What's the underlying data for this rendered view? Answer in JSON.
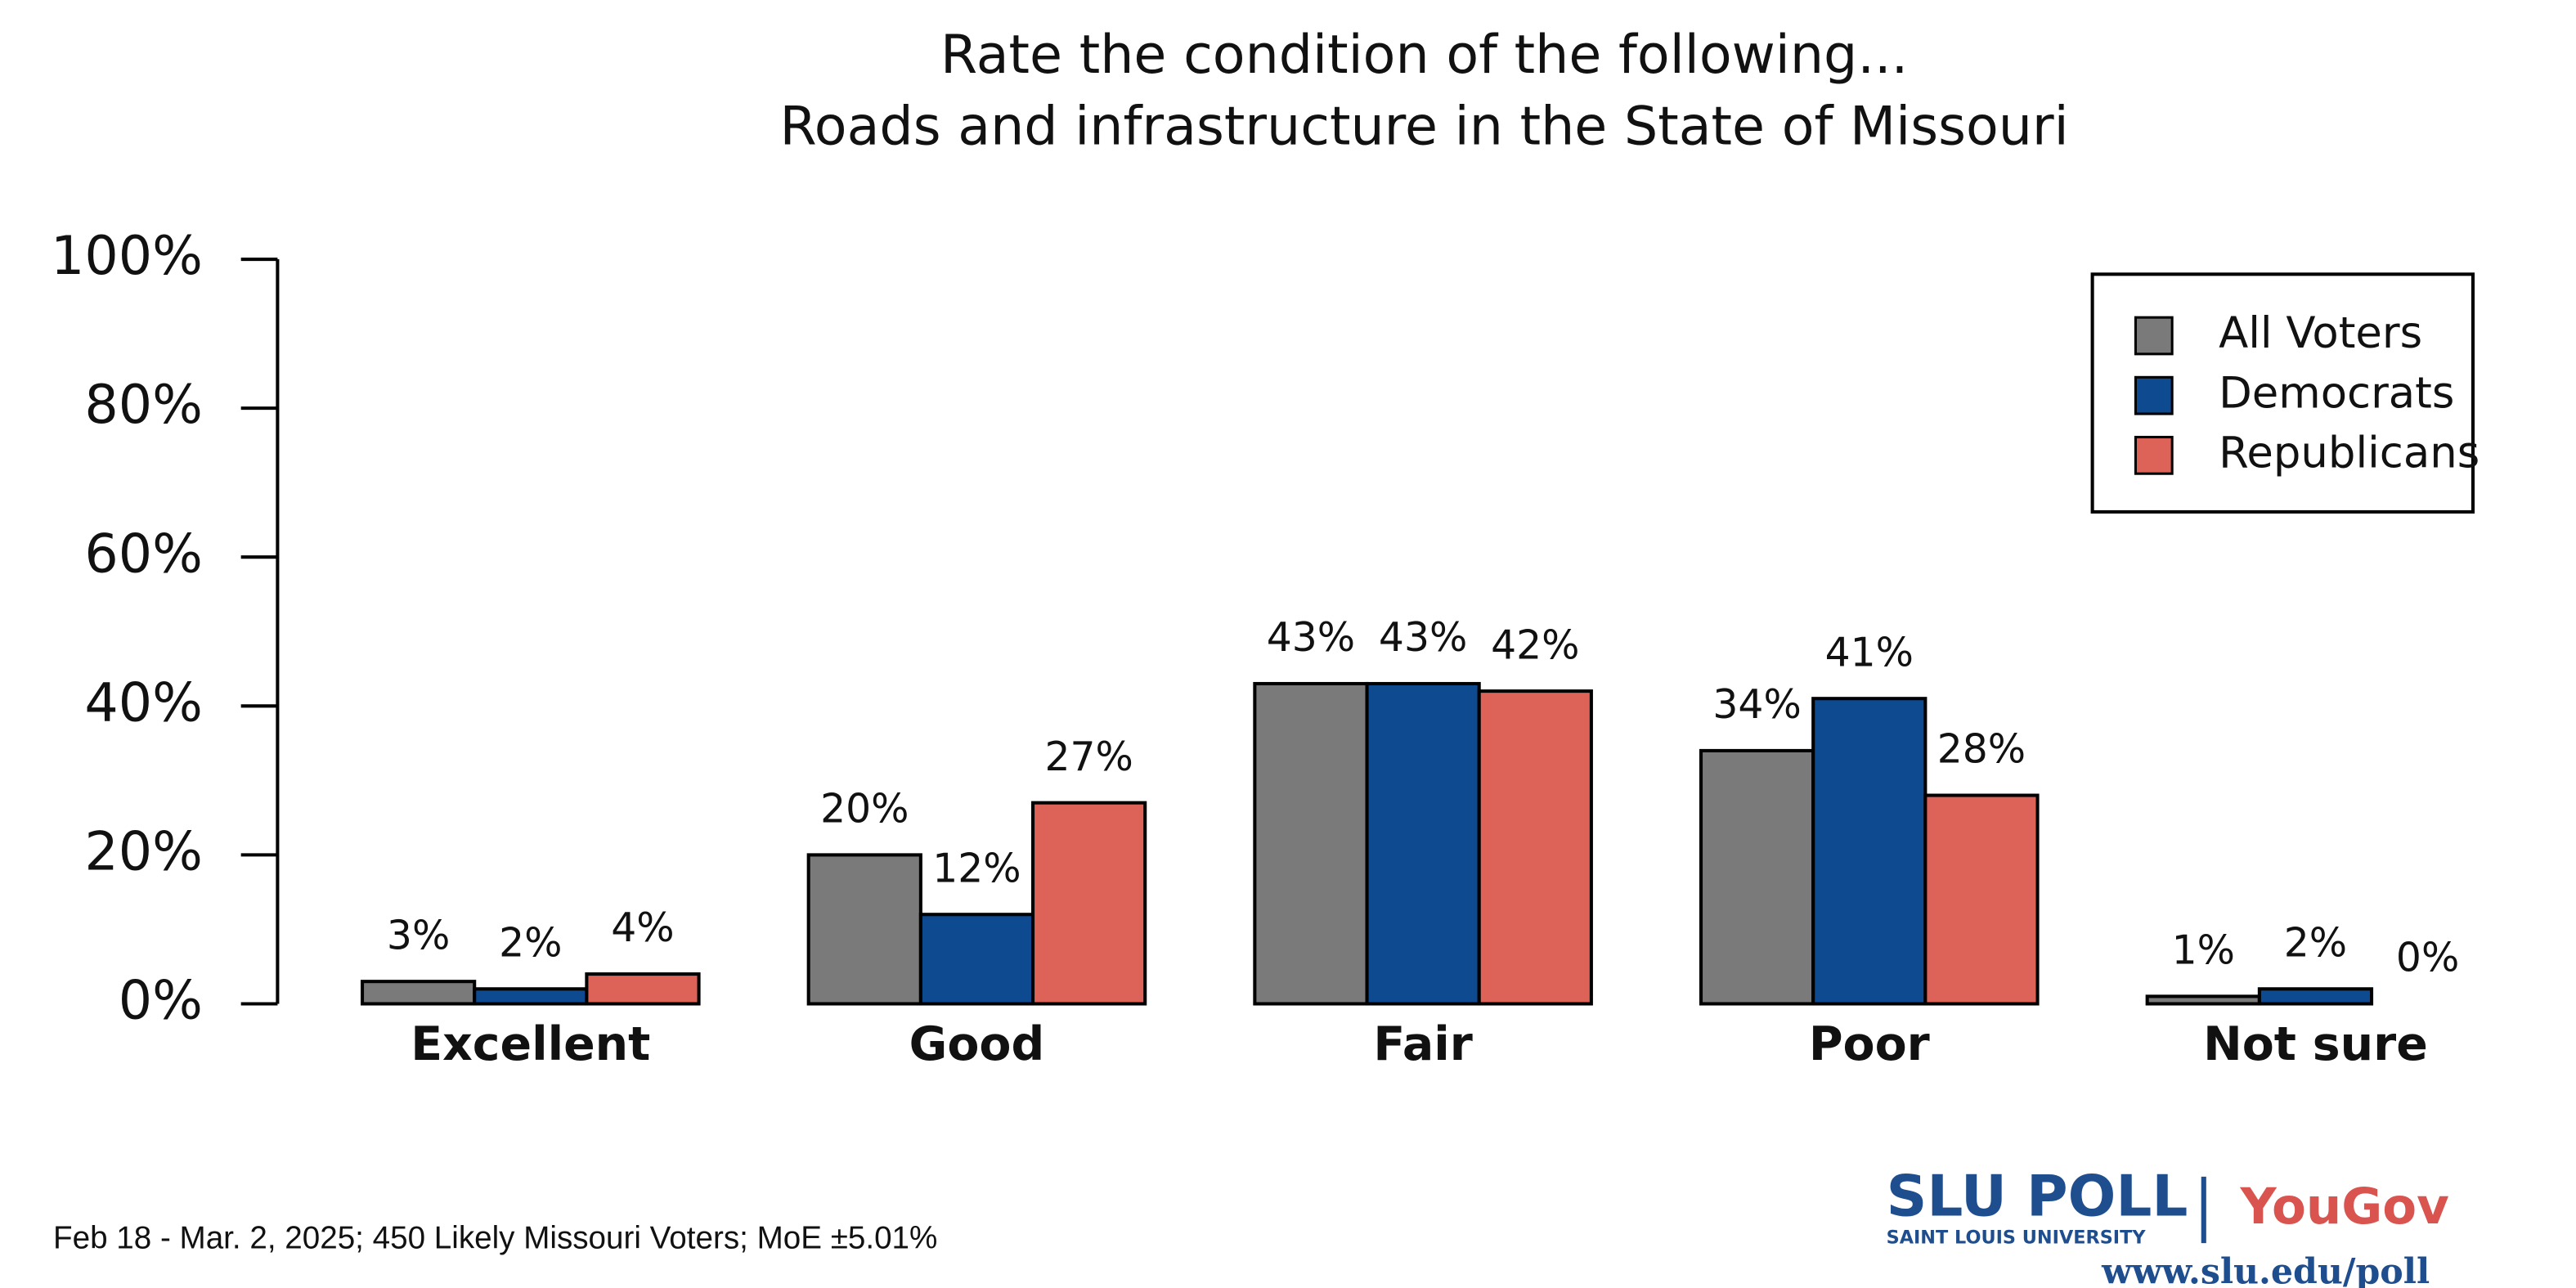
{
  "chart_data": {
    "type": "bar",
    "title": "Rate the condition of the following...",
    "subtitle": "Roads and infrastructure in the State of Missouri",
    "categories": [
      "Excellent",
      "Good",
      "Fair",
      "Poor",
      "Not sure"
    ],
    "series": [
      {
        "name": "All Voters",
        "color": "#7a7a7a",
        "values": [
          3,
          20,
          43,
          34,
          1
        ],
        "value_labels": [
          "3%",
          "20%",
          "43%",
          "34%",
          "1%"
        ]
      },
      {
        "name": "Democrats",
        "color": "#0d4a8f",
        "values": [
          2,
          12,
          43,
          41,
          2
        ],
        "value_labels": [
          "2%",
          "12%",
          "43%",
          "41%",
          "2%"
        ]
      },
      {
        "name": "Republicans",
        "color": "#dd6358",
        "values": [
          4,
          27,
          42,
          28,
          0
        ],
        "value_labels": [
          "4%",
          "27%",
          "42%",
          "28%",
          "0%"
        ]
      }
    ],
    "ylim": [
      0,
      100
    ],
    "yticks": [
      {
        "value": 0,
        "label": "0%"
      },
      {
        "value": 20,
        "label": "20%"
      },
      {
        "value": 40,
        "label": "40%"
      },
      {
        "value": 60,
        "label": "60%"
      },
      {
        "value": 80,
        "label": "80%"
      },
      {
        "value": 100,
        "label": "100%"
      }
    ],
    "legend": "top-right"
  },
  "footer": {
    "note": "Feb 18 - Mar. 2, 2025; 450 Likely Missouri Voters; MoE ±5.01%",
    "logo_main": "SLU POLL",
    "logo_sub": "SAINT LOUIS UNIVERSITY",
    "partner": "YouGov",
    "url": "www.slu.edu/poll"
  }
}
